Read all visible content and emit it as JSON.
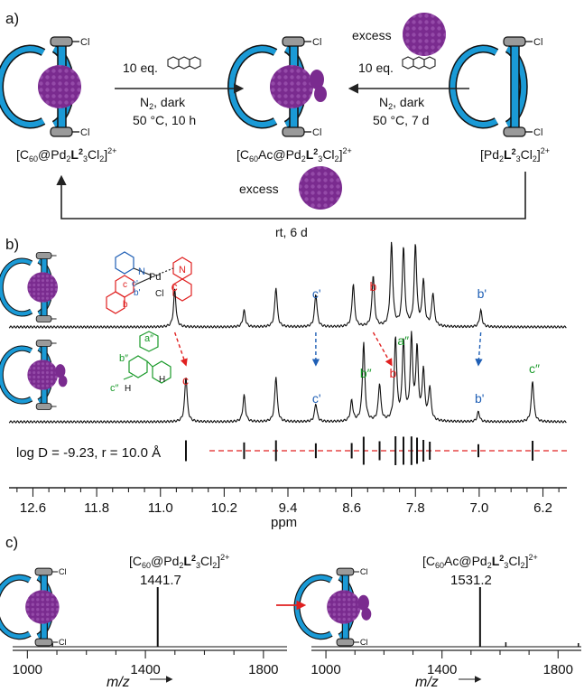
{
  "panel_labels": {
    "a": "a)",
    "b": "b)",
    "c": "c)"
  },
  "scheme": {
    "left_compound": "[C60@Pd2L23Cl2]2+",
    "middle_compound": "[C60Ac@Pd2L23Cl2]2+",
    "right_compound": "[Pd2L23Cl2]2+",
    "cage_chloride_label": "Cl",
    "left_arrow": {
      "reagent": "10 eq.",
      "conditions": "N2, dark",
      "temp_time": "50 °C, 10 h"
    },
    "right_arrow": {
      "reagent_top": "excess",
      "reagent": "10 eq.",
      "conditions": "N2, dark",
      "temp_time": "50 °C,  7 d"
    },
    "bottom_arrow": {
      "reagent": "excess",
      "conditions": "rt,  6 d"
    },
    "colors": {
      "cage": "#1a9ad6",
      "fullerene": "#7a2b8f",
      "cap": "#9a9a9a",
      "arrow_red": "#e02020",
      "label_blue": "#1f5fb5",
      "label_green": "#1a9a2a"
    }
  },
  "nmr": {
    "top_labels": [
      "c",
      "c'",
      "b",
      "b'"
    ],
    "top_inset_labels": {
      "n1": "N",
      "n2": "N",
      "pd": "Pd",
      "cl": "Cl",
      "c": "c",
      "cp": "c'",
      "b": "b",
      "bp": "b'"
    },
    "bottom_labels": [
      "c",
      "c'",
      "b″",
      "a″",
      "b",
      "b'",
      "c″"
    ],
    "bottom_inset_labels": {
      "a2": "a″",
      "b2": "b″",
      "c2": "c″",
      "h1": "H",
      "h2": "H"
    },
    "dosy_text": "log D = -9.23, r = 10.0 Å",
    "axis_unit": "ppm",
    "axis_ticks": [
      "12.6",
      "11.8",
      "11.0",
      "10.2",
      "9.4",
      "8.6",
      "7.8",
      "7.0",
      "6.2"
    ]
  },
  "ms": {
    "left_label": "[C60@Pd2L23Cl2]2+",
    "left_peak": "1441.7",
    "right_label": "[C60Ac@Pd2L23Cl2]2+",
    "right_peak": "1531.2",
    "x_ticks": [
      "1000",
      "1400",
      "1800"
    ],
    "x_label": "m/z"
  },
  "chart_data": [
    {
      "type": "line",
      "title": "",
      "xlabel": "ppm",
      "ylabel": "",
      "xlim": [
        12.9,
        5.9
      ],
      "x_ticks": [
        12.6,
        11.8,
        11.0,
        10.2,
        9.4,
        8.6,
        7.8,
        7.0,
        6.2
      ],
      "series": [
        {
          "peaks_ppm": [
            10.82,
            9.95,
            9.55,
            9.05,
            8.58,
            8.33,
            8.1,
            7.95,
            7.8,
            7.7,
            7.58,
            6.98
          ],
          "peak_rel_heights": [
            0.45,
            0.2,
            0.48,
            0.4,
            0.52,
            0.62,
            1.0,
            0.95,
            0.98,
            0.55,
            0.4,
            0.2
          ]
        },
        {
          "peaks_ppm": [
            10.68,
            9.95,
            9.55,
            9.05,
            8.6,
            8.45,
            8.25,
            8.05,
            7.95,
            7.85,
            7.78,
            7.7,
            7.62,
            7.01,
            6.33
          ],
          "peak_rel_heights": [
            0.55,
            0.32,
            0.55,
            0.22,
            0.25,
            0.95,
            0.45,
            1.0,
            0.95,
            0.98,
            0.85,
            0.6,
            0.4,
            0.12,
            0.5
          ]
        }
      ],
      "dosy_logD": -9.23
    },
    {
      "type": "line",
      "title": "",
      "xlabel": "m/z",
      "xlim": [
        950,
        1880
      ],
      "series": [
        {
          "peaks": [
            [
              1441.7,
              1.0
            ]
          ]
        },
        {
          "peaks": [
            [
              1531.2,
              1.0
            ]
          ]
        }
      ]
    }
  ]
}
